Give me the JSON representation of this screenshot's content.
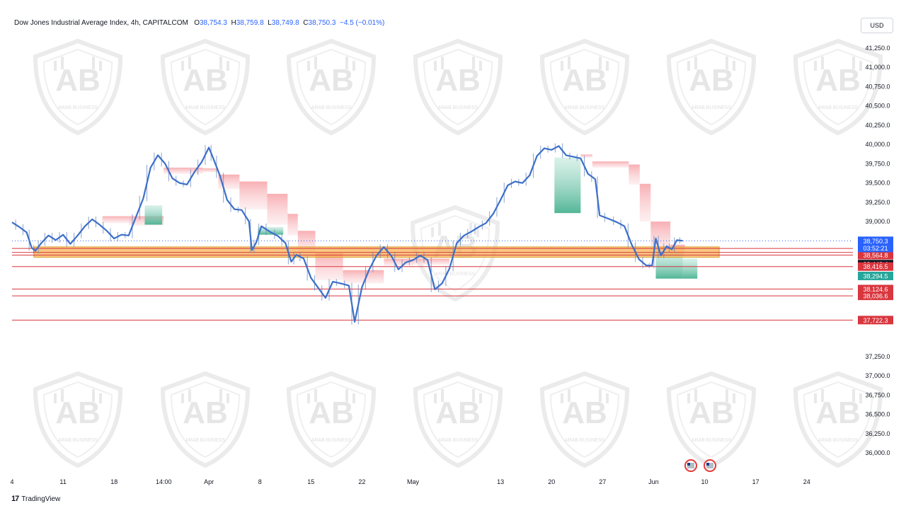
{
  "header": {
    "symbol": "Dow Jones Industrial Average Index, 4h, CAPITALCOM",
    "open_label": "O",
    "open": "38,754.3",
    "high_label": "H",
    "high": "38,759.8",
    "low_label": "L",
    "low": "38,749.8",
    "close_label": "C",
    "close": "38,750.3",
    "change": "−4.5 (−0.01%)"
  },
  "currency_button": "USD",
  "footer": {
    "brand": "TradingView",
    "logo_glyph": "17"
  },
  "watermark": {
    "text": "ARAB BUSINESS",
    "monogram": "AB"
  },
  "colors": {
    "price": "#3d6fc9",
    "resistance": "#d9363e",
    "support_zone": "#f5b04d",
    "bearish_cloud": "#f7b9bd",
    "bullish_cloud": "#45b08f",
    "current_price_tag": "#2962ff",
    "level_black": "#131722",
    "level_green": "#26a69a"
  },
  "chart_data": {
    "type": "line",
    "timeframe": "4h",
    "ylim": [
      35850,
      41450
    ],
    "y_ticks": [
      {
        "value": 41250,
        "label": "41,250.0"
      },
      {
        "value": 41000,
        "label": "41,000.0"
      },
      {
        "value": 40750,
        "label": "40,750.0"
      },
      {
        "value": 40500,
        "label": "40,500.0"
      },
      {
        "value": 40250,
        "label": "40,250.0"
      },
      {
        "value": 40000,
        "label": "40,000.0"
      },
      {
        "value": 39750,
        "label": "39,750.0"
      },
      {
        "value": 39500,
        "label": "39,500.0"
      },
      {
        "value": 39250,
        "label": "39,250.0"
      },
      {
        "value": 39000,
        "label": "39,000.0"
      },
      {
        "value": 37250,
        "label": "37,250.0"
      },
      {
        "value": 37000,
        "label": "37,000.0"
      },
      {
        "value": 36750,
        "label": "36,750.0"
      },
      {
        "value": 36500,
        "label": "36,500.0"
      },
      {
        "value": 36250,
        "label": "36,250.0"
      },
      {
        "value": 36000,
        "label": "36,000.0"
      }
    ],
    "x_ticks": [
      {
        "t": 0,
        "label": "4"
      },
      {
        "t": 7,
        "label": "11"
      },
      {
        "t": 14,
        "label": "18"
      },
      {
        "t": 20.8,
        "label": "14:00"
      },
      {
        "t": 27,
        "label": "Apr"
      },
      {
        "t": 34,
        "label": "8"
      },
      {
        "t": 41,
        "label": "15"
      },
      {
        "t": 48,
        "label": "22"
      },
      {
        "t": 55,
        "label": "May"
      },
      {
        "t": 67,
        "label": "13"
      },
      {
        "t": 74,
        "label": "20"
      },
      {
        "t": 81,
        "label": "27"
      },
      {
        "t": 88,
        "label": "Jun"
      },
      {
        "t": 95,
        "label": "10"
      },
      {
        "t": 102,
        "label": "17"
      },
      {
        "t": 109,
        "label": "24"
      }
    ],
    "price_tag": {
      "value": 38750.3,
      "label": "38,750.3",
      "countdown": "03:52:21"
    },
    "levels": [
      {
        "value": 38651.3,
        "label": "38,651.3",
        "style": "red"
      },
      {
        "value": 38600.0,
        "label": "38,600.0",
        "style": "red"
      },
      {
        "value": 38564.8,
        "label": "38,564.8",
        "style": "red"
      },
      {
        "value": 38448.4,
        "label": "38,448.4",
        "style": "black"
      },
      {
        "value": 38416.5,
        "label": "38,416.5",
        "style": "red"
      },
      {
        "value": 38294.5,
        "label": "38,294.5",
        "style": "green"
      },
      {
        "value": 38124.6,
        "label": "38,124.6",
        "style": "red"
      },
      {
        "value": 38036.6,
        "label": "38,036.6",
        "style": "red"
      },
      {
        "value": 37722.3,
        "label": "37,722.3",
        "style": "red"
      }
    ],
    "support_zone": {
      "t_start": 3,
      "t_end": 97,
      "y_low": 38537,
      "y_high": 38672
    },
    "price_series": [
      {
        "t": 0,
        "y": 38990
      },
      {
        "t": 1,
        "y": 38930
      },
      {
        "t": 2,
        "y": 38860
      },
      {
        "t": 2.7,
        "y": 38660
      },
      {
        "t": 3.2,
        "y": 38620
      },
      {
        "t": 4,
        "y": 38720
      },
      {
        "t": 5,
        "y": 38820
      },
      {
        "t": 6,
        "y": 38760
      },
      {
        "t": 7,
        "y": 38830
      },
      {
        "t": 8,
        "y": 38710
      },
      {
        "t": 9,
        "y": 38820
      },
      {
        "t": 10,
        "y": 38940
      },
      {
        "t": 11,
        "y": 39030
      },
      {
        "t": 12,
        "y": 38960
      },
      {
        "t": 13,
        "y": 38880
      },
      {
        "t": 14,
        "y": 38780
      },
      {
        "t": 15,
        "y": 38830
      },
      {
        "t": 16,
        "y": 38820
      },
      {
        "t": 17,
        "y": 39060
      },
      {
        "t": 18,
        "y": 39300
      },
      {
        "t": 19,
        "y": 39700
      },
      {
        "t": 20,
        "y": 39860
      },
      {
        "t": 21,
        "y": 39750
      },
      {
        "t": 22,
        "y": 39560
      },
      {
        "t": 23,
        "y": 39500
      },
      {
        "t": 24,
        "y": 39480
      },
      {
        "t": 25,
        "y": 39640
      },
      {
        "t": 26,
        "y": 39770
      },
      {
        "t": 27,
        "y": 39960
      },
      {
        "t": 27.6,
        "y": 39820
      },
      {
        "t": 28.5,
        "y": 39600
      },
      {
        "t": 29.5,
        "y": 39280
      },
      {
        "t": 30.5,
        "y": 39160
      },
      {
        "t": 31.5,
        "y": 39150
      },
      {
        "t": 32.5,
        "y": 39000
      },
      {
        "t": 32.9,
        "y": 38630
      },
      {
        "t": 33.5,
        "y": 38730
      },
      {
        "t": 34.2,
        "y": 38940
      },
      {
        "t": 35.5,
        "y": 38860
      },
      {
        "t": 36.5,
        "y": 38810
      },
      {
        "t": 37.5,
        "y": 38720
      },
      {
        "t": 38.3,
        "y": 38480
      },
      {
        "t": 39,
        "y": 38570
      },
      {
        "t": 40,
        "y": 38520
      },
      {
        "t": 41,
        "y": 38270
      },
      {
        "t": 42,
        "y": 38140
      },
      {
        "t": 43,
        "y": 38010
      },
      {
        "t": 44,
        "y": 38220
      },
      {
        "t": 45,
        "y": 38200
      },
      {
        "t": 46.2,
        "y": 38170
      },
      {
        "t": 47,
        "y": 37700
      },
      {
        "t": 48,
        "y": 38150
      },
      {
        "t": 49,
        "y": 38380
      },
      {
        "t": 50,
        "y": 38560
      },
      {
        "t": 51,
        "y": 38670
      },
      {
        "t": 52,
        "y": 38560
      },
      {
        "t": 53,
        "y": 38380
      },
      {
        "t": 54,
        "y": 38470
      },
      {
        "t": 55,
        "y": 38500
      },
      {
        "t": 56,
        "y": 38560
      },
      {
        "t": 57,
        "y": 38500
      },
      {
        "t": 58,
        "y": 38120
      },
      {
        "t": 59,
        "y": 38200
      },
      {
        "t": 60,
        "y": 38390
      },
      {
        "t": 61,
        "y": 38720
      },
      {
        "t": 62,
        "y": 38820
      },
      {
        "t": 63,
        "y": 38870
      },
      {
        "t": 64,
        "y": 38930
      },
      {
        "t": 65,
        "y": 38980
      },
      {
        "t": 66,
        "y": 39100
      },
      {
        "t": 67,
        "y": 39280
      },
      {
        "t": 68,
        "y": 39470
      },
      {
        "t": 69,
        "y": 39520
      },
      {
        "t": 70,
        "y": 39500
      },
      {
        "t": 71,
        "y": 39600
      },
      {
        "t": 72,
        "y": 39850
      },
      {
        "t": 73,
        "y": 39950
      },
      {
        "t": 74,
        "y": 39930
      },
      {
        "t": 75,
        "y": 39980
      },
      {
        "t": 76,
        "y": 39860
      },
      {
        "t": 77,
        "y": 39840
      },
      {
        "t": 78,
        "y": 39820
      },
      {
        "t": 79,
        "y": 39620
      },
      {
        "t": 80,
        "y": 39550
      },
      {
        "t": 80.6,
        "y": 39080
      },
      {
        "t": 82,
        "y": 39030
      },
      {
        "t": 83,
        "y": 38990
      },
      {
        "t": 84,
        "y": 38940
      },
      {
        "t": 85,
        "y": 38700
      },
      {
        "t": 86,
        "y": 38510
      },
      {
        "t": 87,
        "y": 38430
      },
      {
        "t": 87.8,
        "y": 38430
      },
      {
        "t": 88.3,
        "y": 38780
      },
      {
        "t": 89,
        "y": 38560
      },
      {
        "t": 89.8,
        "y": 38680
      },
      {
        "t": 90.5,
        "y": 38640
      },
      {
        "t": 91.2,
        "y": 38760
      },
      {
        "t": 92,
        "y": 38750
      }
    ],
    "bearish_cloud": [
      {
        "t": 1,
        "top": 38900,
        "bottom": 38850
      },
      {
        "t": 12.4,
        "top": 39070,
        "bottom": 38980
      },
      {
        "t": 16,
        "top": 39070,
        "bottom": 38950
      },
      {
        "t": 20.8,
        "top": 39700,
        "bottom": 39620
      },
      {
        "t": 26.2,
        "top": 39690,
        "bottom": 39640
      },
      {
        "t": 28.3,
        "top": 39610,
        "bottom": 39420
      },
      {
        "t": 31.2,
        "top": 39520,
        "bottom": 39160
      },
      {
        "t": 35,
        "top": 39360,
        "bottom": 38960
      },
      {
        "t": 37.8,
        "top": 39100,
        "bottom": 38820
      },
      {
        "t": 39.2,
        "top": 38880,
        "bottom": 38600
      },
      {
        "t": 41.6,
        "top": 38590,
        "bottom": 38240
      },
      {
        "t": 45.4,
        "top": 38370,
        "bottom": 38200
      },
      {
        "t": 51,
        "top": 38520,
        "bottom": 38430
      },
      {
        "t": 55,
        "top": 38520,
        "bottom": 38440
      },
      {
        "t": 60,
        "top": 38470,
        "bottom": 38400
      },
      {
        "t": 69,
        "top": 39540,
        "bottom": 39510
      },
      {
        "t": 78,
        "top": 39870,
        "bottom": 39830
      },
      {
        "t": 79.6,
        "top": 39780,
        "bottom": 39700
      },
      {
        "t": 84.6,
        "top": 39740,
        "bottom": 39480
      },
      {
        "t": 86.1,
        "top": 39490,
        "bottom": 39000
      },
      {
        "t": 87.6,
        "top": 39000,
        "bottom": 38600
      },
      {
        "t": 90.3,
        "top": 38700,
        "bottom": 38560
      }
    ],
    "bullish_cloud": [
      {
        "t": 3.2,
        "top": 38720,
        "bottom": 38680
      },
      {
        "t": 11,
        "top": 38980,
        "bottom": 38720
      },
      {
        "t": 18.2,
        "top": 39210,
        "bottom": 38960
      },
      {
        "t": 20.6,
        "top": 39610,
        "bottom": 39360
      },
      {
        "t": 26.6,
        "top": 39850,
        "bottom": 39610
      },
      {
        "t": 33.7,
        "top": 38930,
        "bottom": 38830
      },
      {
        "t": 37.2,
        "top": 38860,
        "bottom": 38800
      },
      {
        "t": 46.2,
        "top": 38520,
        "bottom": 38150
      },
      {
        "t": 53.6,
        "top": 38520,
        "bottom": 38150
      },
      {
        "t": 60.2,
        "top": 38700,
        "bottom": 38460
      },
      {
        "t": 67.2,
        "top": 39050,
        "bottom": 38620
      },
      {
        "t": 74.4,
        "top": 39830,
        "bottom": 39110
      },
      {
        "t": 78,
        "top": 39840,
        "bottom": 39780
      },
      {
        "t": 88.3,
        "top": 38600,
        "bottom": 38260
      },
      {
        "t": 92,
        "top": 38520,
        "bottom": 38260
      }
    ]
  }
}
